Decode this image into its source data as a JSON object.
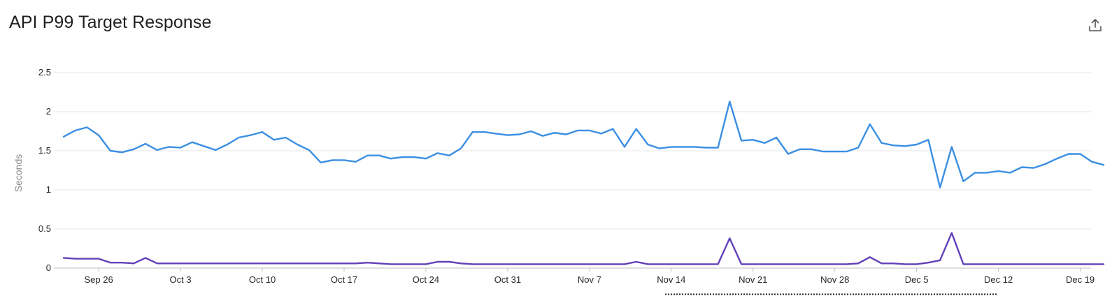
{
  "header": {
    "title": "API P99 Target Response",
    "export_icon": "export-icon"
  },
  "colors": {
    "series_upper": "#3b8fe3",
    "series_lower": "#6140b8",
    "grid": "#e6e6e6",
    "selection_border": "#222222"
  },
  "chart_data": {
    "type": "line",
    "title": "API P99 Target Response",
    "xlabel": "",
    "ylabel": "Seconds",
    "ylim": [
      0,
      2.5
    ],
    "yticks": [
      0,
      0.5,
      1,
      1.5,
      2,
      2.5
    ],
    "ytick_labels": [
      "0",
      "0.5",
      "1",
      "1.5",
      "2",
      "2.5"
    ],
    "x_start": "Sep 23",
    "x_end": "Dec 21",
    "xtick_dates": [
      "2023-09-26",
      "2023-10-03",
      "2023-10-10",
      "2023-10-17",
      "2023-10-24",
      "2023-10-31",
      "2023-11-07",
      "2023-11-14",
      "2023-11-21",
      "2023-11-28",
      "2023-12-05",
      "2023-12-12",
      "2023-12-19"
    ],
    "xtick_labels": [
      "Sep 26",
      "Oct 3",
      "Oct 10",
      "Oct 17",
      "Oct 24",
      "Oct 31",
      "Nov 7",
      "Nov 14",
      "Nov 21",
      "Nov 28",
      "Dec 5",
      "Dec 12",
      "Dec 19"
    ],
    "grid": true,
    "legend": "none",
    "series": [
      {
        "values": [
          [
            0,
            1.68
          ],
          [
            1,
            1.76
          ],
          [
            2,
            1.8
          ],
          [
            3,
            1.7
          ],
          [
            4,
            1.5
          ],
          [
            5,
            1.48
          ],
          [
            6,
            1.52
          ],
          [
            7,
            1.59
          ],
          [
            8,
            1.51
          ],
          [
            9,
            1.55
          ],
          [
            10,
            1.54
          ],
          [
            11,
            1.61
          ],
          [
            12,
            1.56
          ],
          [
            13,
            1.51
          ],
          [
            14,
            1.58
          ],
          [
            15,
            1.67
          ],
          [
            16,
            1.7
          ],
          [
            17,
            1.74
          ],
          [
            18,
            1.64
          ],
          [
            19,
            1.67
          ],
          [
            20,
            1.58
          ],
          [
            21,
            1.51
          ],
          [
            22,
            1.35
          ],
          [
            23,
            1.38
          ],
          [
            24,
            1.38
          ],
          [
            25,
            1.36
          ],
          [
            26,
            1.44
          ],
          [
            27,
            1.44
          ],
          [
            28,
            1.4
          ],
          [
            29,
            1.42
          ],
          [
            30,
            1.42
          ],
          [
            31,
            1.4
          ],
          [
            32,
            1.47
          ],
          [
            33,
            1.44
          ],
          [
            34,
            1.53
          ],
          [
            35,
            1.74
          ],
          [
            36,
            1.74
          ],
          [
            37,
            1.72
          ],
          [
            38,
            1.7
          ],
          [
            39,
            1.71
          ],
          [
            40,
            1.75
          ],
          [
            41,
            1.69
          ],
          [
            42,
            1.73
          ],
          [
            43,
            1.71
          ],
          [
            44,
            1.76
          ],
          [
            45,
            1.76
          ],
          [
            46,
            1.72
          ],
          [
            47,
            1.78
          ],
          [
            48,
            1.55
          ],
          [
            49,
            1.78
          ],
          [
            50,
            1.58
          ],
          [
            51,
            1.53
          ],
          [
            52,
            1.55
          ],
          [
            53,
            1.55
          ],
          [
            54,
            1.55
          ],
          [
            55,
            1.54
          ],
          [
            56,
            1.54
          ],
          [
            57,
            2.13
          ],
          [
            58,
            1.63
          ],
          [
            59,
            1.64
          ],
          [
            60,
            1.6
          ],
          [
            61,
            1.67
          ],
          [
            62,
            1.46
          ],
          [
            63,
            1.52
          ],
          [
            64,
            1.52
          ],
          [
            65,
            1.49
          ],
          [
            66,
            1.49
          ],
          [
            67,
            1.49
          ],
          [
            68,
            1.54
          ],
          [
            69,
            1.84
          ],
          [
            70,
            1.6
          ],
          [
            71,
            1.57
          ],
          [
            72,
            1.56
          ],
          [
            73,
            1.58
          ],
          [
            74,
            1.64
          ],
          [
            75,
            1.03
          ],
          [
            76,
            1.55
          ],
          [
            77,
            1.11
          ],
          [
            78,
            1.22
          ],
          [
            79,
            1.22
          ],
          [
            80,
            1.24
          ],
          [
            81,
            1.22
          ],
          [
            82,
            1.29
          ],
          [
            83,
            1.28
          ],
          [
            84,
            1.33
          ],
          [
            85,
            1.4
          ],
          [
            86,
            1.46
          ],
          [
            87,
            1.46
          ],
          [
            88,
            1.36
          ],
          [
            89,
            1.32
          ]
        ]
      },
      {
        "values": [
          [
            0,
            0.13
          ],
          [
            1,
            0.12
          ],
          [
            2,
            0.12
          ],
          [
            3,
            0.12
          ],
          [
            4,
            0.07
          ],
          [
            5,
            0.07
          ],
          [
            6,
            0.06
          ],
          [
            7,
            0.13
          ],
          [
            8,
            0.06
          ],
          [
            9,
            0.06
          ],
          [
            10,
            0.06
          ],
          [
            11,
            0.06
          ],
          [
            12,
            0.06
          ],
          [
            13,
            0.06
          ],
          [
            14,
            0.06
          ],
          [
            15,
            0.06
          ],
          [
            16,
            0.06
          ],
          [
            17,
            0.06
          ],
          [
            18,
            0.06
          ],
          [
            19,
            0.06
          ],
          [
            20,
            0.06
          ],
          [
            21,
            0.06
          ],
          [
            22,
            0.06
          ],
          [
            23,
            0.06
          ],
          [
            24,
            0.06
          ],
          [
            25,
            0.06
          ],
          [
            26,
            0.07
          ],
          [
            27,
            0.06
          ],
          [
            28,
            0.05
          ],
          [
            29,
            0.05
          ],
          [
            30,
            0.05
          ],
          [
            31,
            0.05
          ],
          [
            32,
            0.08
          ],
          [
            33,
            0.08
          ],
          [
            34,
            0.06
          ],
          [
            35,
            0.05
          ],
          [
            36,
            0.05
          ],
          [
            37,
            0.05
          ],
          [
            38,
            0.05
          ],
          [
            39,
            0.05
          ],
          [
            40,
            0.05
          ],
          [
            41,
            0.05
          ],
          [
            42,
            0.05
          ],
          [
            43,
            0.05
          ],
          [
            44,
            0.05
          ],
          [
            45,
            0.05
          ],
          [
            46,
            0.05
          ],
          [
            47,
            0.05
          ],
          [
            48,
            0.05
          ],
          [
            49,
            0.08
          ],
          [
            50,
            0.05
          ],
          [
            51,
            0.05
          ],
          [
            52,
            0.05
          ],
          [
            53,
            0.05
          ],
          [
            54,
            0.05
          ],
          [
            55,
            0.05
          ],
          [
            56,
            0.05
          ],
          [
            57,
            0.38
          ],
          [
            58,
            0.05
          ],
          [
            59,
            0.05
          ],
          [
            60,
            0.05
          ],
          [
            61,
            0.05
          ],
          [
            62,
            0.05
          ],
          [
            63,
            0.05
          ],
          [
            64,
            0.05
          ],
          [
            65,
            0.05
          ],
          [
            66,
            0.05
          ],
          [
            67,
            0.05
          ],
          [
            68,
            0.06
          ],
          [
            69,
            0.14
          ],
          [
            70,
            0.06
          ],
          [
            71,
            0.06
          ],
          [
            72,
            0.05
          ],
          [
            73,
            0.05
          ],
          [
            74,
            0.07
          ],
          [
            75,
            0.1
          ],
          [
            76,
            0.45
          ],
          [
            77,
            0.05
          ],
          [
            78,
            0.05
          ],
          [
            79,
            0.05
          ],
          [
            80,
            0.05
          ],
          [
            81,
            0.05
          ],
          [
            82,
            0.05
          ],
          [
            83,
            0.05
          ],
          [
            84,
            0.05
          ],
          [
            85,
            0.05
          ],
          [
            86,
            0.05
          ],
          [
            87,
            0.05
          ],
          [
            88,
            0.05
          ],
          [
            89,
            0.05
          ]
        ]
      }
    ]
  }
}
